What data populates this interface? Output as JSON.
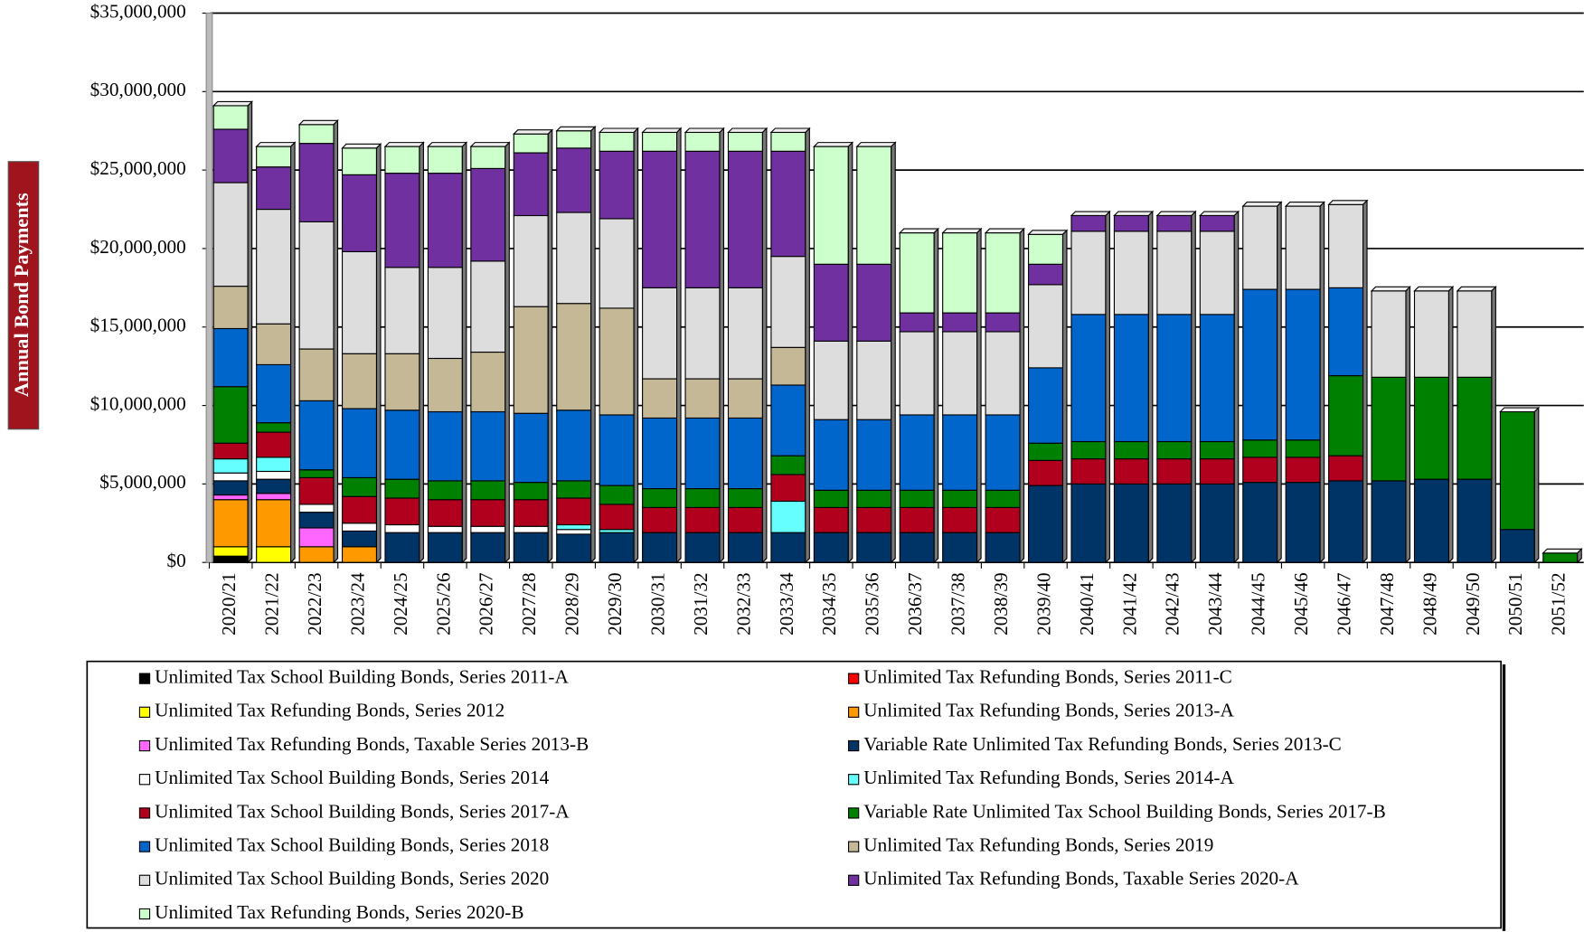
{
  "chart_data": {
    "type": "stacked_bar",
    "y_axis_label": "Annual Bond Payments",
    "categories": [
      "2020/21",
      "2021/22",
      "2022/23",
      "2023/24",
      "2024/25",
      "2025/26",
      "2026/27",
      "2027/28",
      "2028/29",
      "2029/30",
      "2030/31",
      "2031/32",
      "2032/33",
      "2033/34",
      "2034/35",
      "2035/36",
      "2036/37",
      "2037/38",
      "2038/39",
      "2039/40",
      "2040/41",
      "2041/42",
      "2042/43",
      "2043/44",
      "2044/45",
      "2045/46",
      "2046/47",
      "2047/48",
      "2048/49",
      "2049/50",
      "2050/51",
      "2051/52"
    ],
    "ylim": [
      0,
      35000000
    ],
    "yticks": [
      {
        "value": 0,
        "label": "$0"
      },
      {
        "value": 5000000,
        "label": "$5,000,000"
      },
      {
        "value": 10000000,
        "label": "$10,000,000"
      },
      {
        "value": 15000000,
        "label": "$15,000,000"
      },
      {
        "value": 20000000,
        "label": "$20,000,000"
      },
      {
        "value": 25000000,
        "label": "$25,000,000"
      },
      {
        "value": 30000000,
        "label": "$30,000,000"
      },
      {
        "value": 35000000,
        "label": "$35,000,000"
      }
    ],
    "grid": true,
    "series": [
      {
        "name": "Unlimited Tax School Building Bonds, Series 2011-A",
        "color": "#000000",
        "values": [
          400000,
          0,
          0,
          0,
          0,
          0,
          0,
          0,
          0,
          0,
          0,
          0,
          0,
          0,
          0,
          0,
          0,
          0,
          0,
          0,
          0,
          0,
          0,
          0,
          0,
          0,
          0,
          0,
          0,
          0,
          0,
          0
        ]
      },
      {
        "name": "Unlimited Tax Refunding Bonds, Series 2011-C",
        "color": "#ff0000",
        "values": [
          0,
          0,
          0,
          0,
          0,
          0,
          0,
          0,
          0,
          0,
          0,
          0,
          0,
          0,
          0,
          0,
          0,
          0,
          0,
          0,
          0,
          0,
          0,
          0,
          0,
          0,
          0,
          0,
          0,
          0,
          0,
          0
        ]
      },
      {
        "name": "Unlimited Tax Refunding Bonds, Series 2012",
        "color": "#ffff00",
        "values": [
          600000,
          1000000,
          0,
          0,
          0,
          0,
          0,
          0,
          0,
          0,
          0,
          0,
          0,
          0,
          0,
          0,
          0,
          0,
          0,
          0,
          0,
          0,
          0,
          0,
          0,
          0,
          0,
          0,
          0,
          0,
          0,
          0
        ]
      },
      {
        "name": "Unlimited Tax Refunding Bonds, Series 2013-A",
        "color": "#ff9900",
        "values": [
          3000000,
          3000000,
          1000000,
          1000000,
          0,
          0,
          0,
          0,
          0,
          0,
          0,
          0,
          0,
          0,
          0,
          0,
          0,
          0,
          0,
          0,
          0,
          0,
          0,
          0,
          0,
          0,
          0,
          0,
          0,
          0,
          0,
          0
        ]
      },
      {
        "name": "Unlimited Tax Refunding Bonds, Taxable Series 2013-B",
        "color": "#ff66ff",
        "values": [
          300000,
          400000,
          1200000,
          0,
          0,
          0,
          0,
          0,
          0,
          0,
          0,
          0,
          0,
          0,
          0,
          0,
          0,
          0,
          0,
          0,
          0,
          0,
          0,
          0,
          0,
          0,
          0,
          0,
          0,
          0,
          0,
          0
        ]
      },
      {
        "name": "Variable Rate Unlimited Tax Refunding Bonds, Series 2013-C",
        "color": "#003366",
        "values": [
          900000,
          900000,
          1000000,
          1000000,
          1900000,
          1900000,
          1900000,
          1900000,
          1800000,
          1900000,
          1900000,
          1900000,
          1900000,
          1900000,
          1900000,
          1900000,
          1900000,
          1900000,
          1900000,
          4900000,
          5000000,
          5000000,
          5000000,
          5000000,
          5100000,
          5100000,
          5200000,
          5200000,
          5300000,
          5300000,
          2100000,
          0
        ]
      },
      {
        "name": "Unlimited Tax School Building Bonds, Series 2014",
        "color": "#ffffff",
        "values": [
          500000,
          500000,
          500000,
          500000,
          500000,
          400000,
          400000,
          400000,
          300000,
          0,
          0,
          0,
          0,
          0,
          0,
          0,
          0,
          0,
          0,
          0,
          0,
          0,
          0,
          0,
          0,
          0,
          0,
          0,
          0,
          0,
          0,
          0
        ]
      },
      {
        "name": "Unlimited Tax Refunding Bonds, Series 2014-A",
        "color": "#66ffff",
        "values": [
          900000,
          900000,
          0,
          0,
          0,
          0,
          0,
          0,
          300000,
          200000,
          0,
          0,
          0,
          2000000,
          0,
          0,
          0,
          0,
          0,
          0,
          0,
          0,
          0,
          0,
          0,
          0,
          0,
          0,
          0,
          0,
          0,
          0
        ]
      },
      {
        "name": "Unlimited Tax School Building Bonds, Series 2017-A",
        "color": "#b0001e",
        "values": [
          1000000,
          1600000,
          1700000,
          1700000,
          1700000,
          1700000,
          1700000,
          1700000,
          1700000,
          1600000,
          1600000,
          1600000,
          1600000,
          1700000,
          1600000,
          1600000,
          1600000,
          1600000,
          1600000,
          1600000,
          1600000,
          1600000,
          1600000,
          1600000,
          1600000,
          1600000,
          1600000,
          0,
          0,
          0,
          0,
          0
        ]
      },
      {
        "name": "Variable Rate Unlimited Tax School Building Bonds, Series 2017-B",
        "color": "#008000",
        "values": [
          3600000,
          600000,
          500000,
          1200000,
          1200000,
          1200000,
          1200000,
          1100000,
          1100000,
          1200000,
          1200000,
          1200000,
          1200000,
          1200000,
          1100000,
          1100000,
          1100000,
          1100000,
          1100000,
          1100000,
          1100000,
          1100000,
          1100000,
          1100000,
          1100000,
          1100000,
          5100000,
          6600000,
          6500000,
          6500000,
          7500000,
          600000
        ]
      },
      {
        "name": "Unlimited Tax School Building Bonds, Series 2018",
        "color": "#0066cc",
        "values": [
          3700000,
          3700000,
          4400000,
          4400000,
          4400000,
          4400000,
          4400000,
          4400000,
          4500000,
          4500000,
          4500000,
          4500000,
          4500000,
          4500000,
          4500000,
          4500000,
          4800000,
          4800000,
          4800000,
          4800000,
          8100000,
          8100000,
          8100000,
          8100000,
          9600000,
          9600000,
          5600000,
          0,
          0,
          0,
          0,
          0
        ]
      },
      {
        "name": "Unlimited Tax Refunding Bonds, Series 2019",
        "color": "#c4b896",
        "values": [
          2700000,
          2600000,
          3300000,
          3500000,
          3600000,
          3400000,
          3800000,
          6800000,
          6800000,
          6800000,
          2500000,
          2500000,
          2500000,
          2400000,
          0,
          0,
          0,
          0,
          0,
          0,
          0,
          0,
          0,
          0,
          0,
          0,
          0,
          0,
          0,
          0,
          0,
          0
        ]
      },
      {
        "name": "Unlimited Tax School Building Bonds, Series 2020",
        "color": "#dddddd",
        "values": [
          6600000,
          7300000,
          8100000,
          6500000,
          5500000,
          5800000,
          5800000,
          5800000,
          5800000,
          5700000,
          5800000,
          5800000,
          5800000,
          5800000,
          5000000,
          5000000,
          5300000,
          5300000,
          5300000,
          5300000,
          5300000,
          5300000,
          5300000,
          5300000,
          5300000,
          5300000,
          5300000,
          5500000,
          5500000,
          5500000,
          0,
          0
        ]
      },
      {
        "name": "Unlimited Tax Refunding Bonds, Taxable Series 2020-A",
        "color": "#7030a0",
        "values": [
          3400000,
          2700000,
          5000000,
          4900000,
          6000000,
          6000000,
          5900000,
          4000000,
          4100000,
          4300000,
          8700000,
          8700000,
          8700000,
          6700000,
          4900000,
          4900000,
          1200000,
          1200000,
          1200000,
          1300000,
          1000000,
          1000000,
          1000000,
          1000000,
          0,
          0,
          0,
          0,
          0,
          0,
          0,
          0
        ]
      },
      {
        "name": "Unlimited Tax Refunding Bonds, Series 2020-B",
        "color": "#ccffcc",
        "values": [
          1500000,
          1300000,
          1200000,
          1700000,
          1700000,
          1700000,
          1400000,
          1200000,
          1100000,
          1200000,
          1200000,
          1200000,
          1200000,
          1200000,
          7500000,
          7500000,
          5100000,
          5100000,
          5100000,
          1900000,
          0,
          0,
          0,
          0,
          0,
          0,
          0,
          0,
          0,
          0,
          0,
          0
        ]
      }
    ]
  }
}
